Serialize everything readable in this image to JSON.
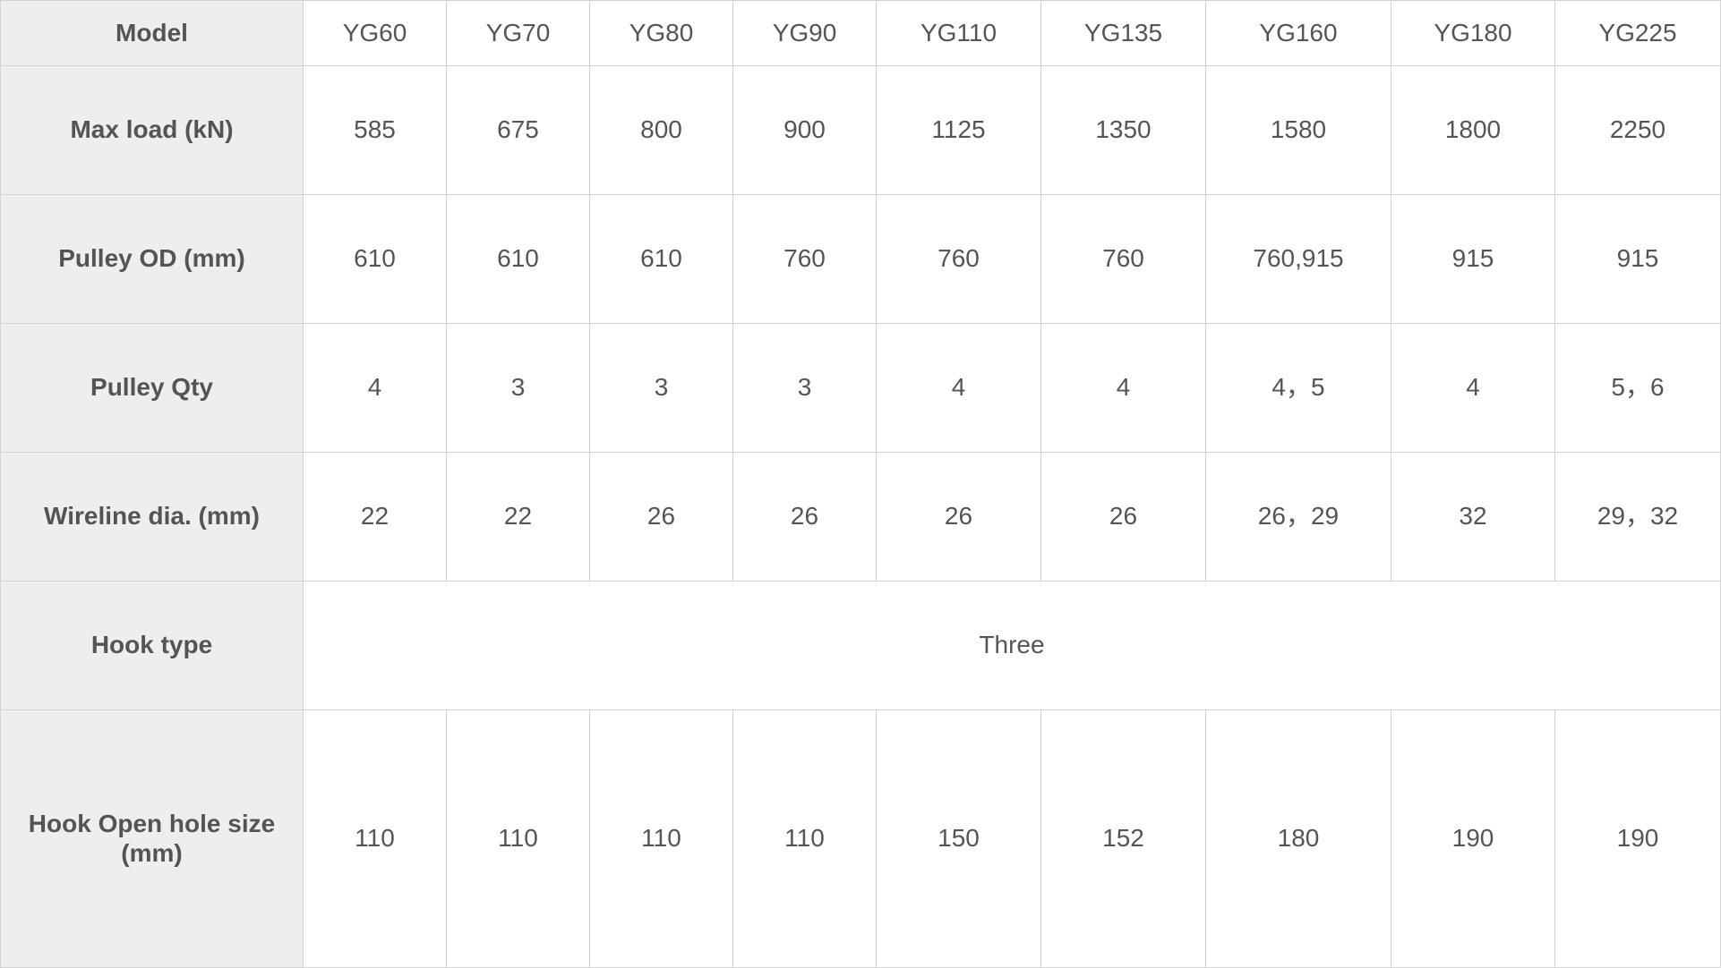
{
  "table": {
    "header": {
      "label": "Model",
      "models": [
        "YG60",
        "YG70",
        "YG80",
        "YG90",
        "YG110",
        "YG135",
        "YG160",
        "YG180",
        "YG225"
      ]
    },
    "rows": [
      {
        "label": "Max load (kN)",
        "values": [
          "585",
          "675",
          "800",
          "900",
          "1125",
          "1350",
          "1580",
          "1800",
          "2250"
        ]
      },
      {
        "label": "Pulley OD (mm)",
        "values": [
          "610",
          "610",
          "610",
          "760",
          "760",
          "760",
          "760,915",
          "915",
          "915"
        ]
      },
      {
        "label": "Pulley Qty",
        "values": [
          "4",
          "3",
          "3",
          "3",
          "4",
          "4",
          "4，5",
          "4",
          "5，6"
        ]
      },
      {
        "label": "Wireline dia. (mm)",
        "values": [
          "22",
          "22",
          "26",
          "26",
          "26",
          "26",
          "26，29",
          "32",
          "29，32"
        ]
      }
    ],
    "hook_type": {
      "label": "Hook type",
      "value": "Three"
    },
    "hook_hole": {
      "label": "Hook Open hole size (mm)",
      "values": [
        "110",
        "110",
        "110",
        "110",
        "150",
        "152",
        "180",
        "190",
        "190"
      ]
    }
  }
}
